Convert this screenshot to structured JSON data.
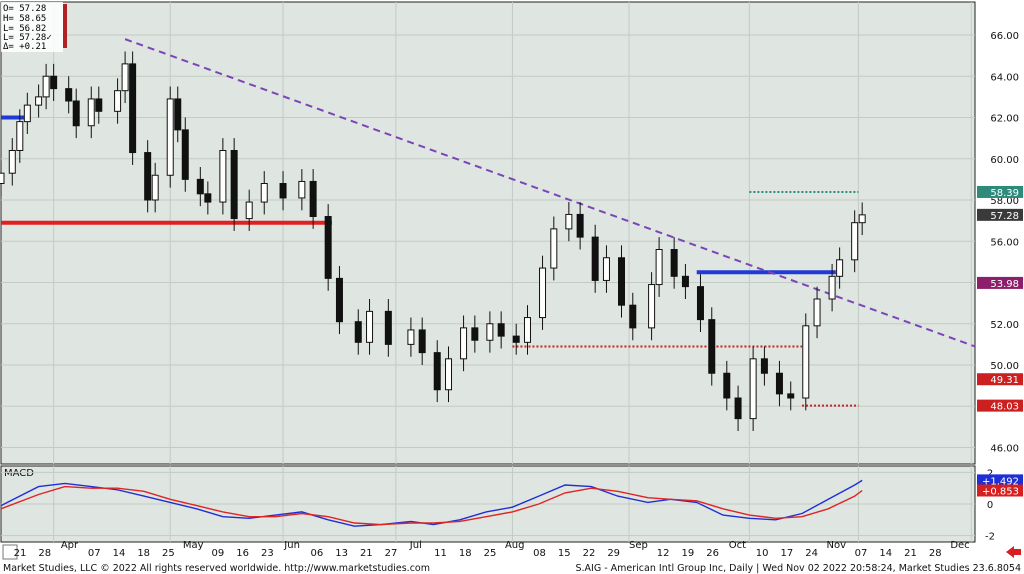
{
  "ohlc_box": {
    "lines": [
      "O=   57.28",
      "H=   58.65",
      "L=   56.82",
      "L=   57.28✓",
      "Δ=  +0.21"
    ]
  },
  "main_axis": {
    "ticks": [
      {
        "value": 46,
        "label": "46.00"
      },
      {
        "value": 48,
        "label": "48.00"
      },
      {
        "value": 50,
        "label": "50.00"
      },
      {
        "value": 52,
        "label": "52.00"
      },
      {
        "value": 54,
        "label": "54.00"
      },
      {
        "value": 56,
        "label": "56.00"
      },
      {
        "value": 58,
        "label": "58.00"
      },
      {
        "value": 60,
        "label": "60.00"
      },
      {
        "value": 62,
        "label": "62.00"
      },
      {
        "value": 64,
        "label": "64.00"
      },
      {
        "value": 66,
        "label": "66.00"
      }
    ],
    "badges": [
      {
        "value": 58.39,
        "label": "58.39",
        "color": "#2e8b7a"
      },
      {
        "value": 57.28,
        "label": "57.28",
        "color": "#3a3a3a"
      },
      {
        "value": 53.98,
        "label": "53.98",
        "color": "#8b1f6b"
      },
      {
        "value": 49.31,
        "label": "49.31",
        "color": "#cc1f1f"
      },
      {
        "value": 48.03,
        "label": "48.03",
        "color": "#cc1f1f"
      }
    ]
  },
  "macd_panel": {
    "title": "MACD",
    "ticks": [
      {
        "value": 2,
        "label": "2"
      },
      {
        "value": 0,
        "label": "0"
      },
      {
        "value": -2,
        "label": "-2"
      }
    ],
    "badges": [
      {
        "value": 1.492,
        "label": "+1.492",
        "color": "#1f2fd6"
      },
      {
        "value": 0.853,
        "label": "+0.853",
        "color": "#d61f1f"
      }
    ]
  },
  "date_axis": {
    "labels": [
      "21",
      "28",
      "Apr",
      "07",
      "14",
      "18",
      "25",
      "May",
      "09",
      "16",
      "23",
      "Jun",
      "06",
      "13",
      "21",
      "27",
      "Jul",
      "11",
      "18",
      "25",
      "Aug",
      "08",
      "15",
      "22",
      "29",
      "Sep",
      "12",
      "19",
      "26",
      "Oct",
      "10",
      "17",
      "24",
      "Nov",
      "07",
      "14",
      "21",
      "28",
      "Dec"
    ],
    "month_labels": [
      "Apr",
      "May",
      "Jun",
      "Jul",
      "Aug",
      "Sep",
      "Oct",
      "Nov",
      "Dec"
    ]
  },
  "footer": {
    "left": "Market Studies, LLC © 2022 All rights reserved worldwide. http://www.marketstudies.com",
    "right": "S.AIG - American Intl Group Inc, Daily | Wed Nov 02 2022 20:58:24, Market Studies 23.6.8054"
  },
  "colors": {
    "plot_bg": "#dfe5e0",
    "up_candle": "#ffffff",
    "down_candle": "#111111",
    "trendline": "#7b45b8",
    "support_red": "#e02020",
    "support_blue": "#1f3ad6",
    "macd_line": "#1f2fd6",
    "signal_line": "#e02424"
  },
  "chart_data": {
    "type": "candlestick",
    "title": "",
    "symbol_text": "S.AIG - American Intl Group Inc, Daily",
    "ylim": [
      45.2,
      67.6
    ],
    "x_range_dates": [
      "2022-03-18",
      "2022-12-02"
    ],
    "last_bar": {
      "open": 57.28,
      "high": 58.65,
      "low": 56.82,
      "close": 57.28,
      "change": 0.21
    },
    "trendline": {
      "start": [
        "2022-04-20",
        65.8
      ],
      "end": [
        "2022-12-02",
        50.9
      ],
      "style": "dashed"
    },
    "horizontal_levels": [
      {
        "value": 56.9,
        "color": "#e02020",
        "from": "2022-03-18",
        "to": "2022-06-14",
        "style": "solid"
      },
      {
        "value": 62.0,
        "color": "#1f3ad6",
        "from": "2022-03-18",
        "to": "2022-03-25",
        "style": "solid"
      },
      {
        "value": 54.5,
        "color": "#1f3ad6",
        "from": "2022-09-19",
        "to": "2022-10-26",
        "style": "solid"
      },
      {
        "value": 58.39,
        "color": "#2e8b7a",
        "from": "2022-10-03",
        "to": "2022-11-01",
        "style": "dotted"
      },
      {
        "value": 48.03,
        "color": "#cc1f1f",
        "from": "2022-10-17",
        "to": "2022-11-01",
        "style": "dotted"
      },
      {
        "value": 50.9,
        "color": "#cc1f1f",
        "from": "2022-08-01",
        "to": "2022-10-17",
        "style": "dotted"
      }
    ],
    "series_close": [
      {
        "date": "2022-03-18",
        "close": 59.3
      },
      {
        "date": "2022-03-21",
        "close": 60.4
      },
      {
        "date": "2022-03-23",
        "close": 61.8
      },
      {
        "date": "2022-03-25",
        "close": 62.6
      },
      {
        "date": "2022-03-28",
        "close": 63.0
      },
      {
        "date": "2022-03-30",
        "close": 64.0
      },
      {
        "date": "2022-04-01",
        "close": 63.4
      },
      {
        "date": "2022-04-05",
        "close": 62.8
      },
      {
        "date": "2022-04-07",
        "close": 61.6
      },
      {
        "date": "2022-04-11",
        "close": 62.9
      },
      {
        "date": "2022-04-13",
        "close": 62.3
      },
      {
        "date": "2022-04-18",
        "close": 63.3
      },
      {
        "date": "2022-04-20",
        "close": 64.6
      },
      {
        "date": "2022-04-22",
        "close": 60.3
      },
      {
        "date": "2022-04-26",
        "close": 58.0
      },
      {
        "date": "2022-04-28",
        "close": 59.2
      },
      {
        "date": "2022-05-02",
        "close": 62.9
      },
      {
        "date": "2022-05-04",
        "close": 61.4
      },
      {
        "date": "2022-05-06",
        "close": 59.0
      },
      {
        "date": "2022-05-10",
        "close": 58.3
      },
      {
        "date": "2022-05-12",
        "close": 57.9
      },
      {
        "date": "2022-05-16",
        "close": 60.4
      },
      {
        "date": "2022-05-19",
        "close": 57.1
      },
      {
        "date": "2022-05-23",
        "close": 57.9
      },
      {
        "date": "2022-05-27",
        "close": 58.8
      },
      {
        "date": "2022-06-01",
        "close": 58.1
      },
      {
        "date": "2022-06-06",
        "close": 58.9
      },
      {
        "date": "2022-06-09",
        "close": 57.2
      },
      {
        "date": "2022-06-13",
        "close": 54.2
      },
      {
        "date": "2022-06-16",
        "close": 52.1
      },
      {
        "date": "2022-06-21",
        "close": 51.1
      },
      {
        "date": "2022-06-24",
        "close": 52.6
      },
      {
        "date": "2022-06-29",
        "close": 51.0
      },
      {
        "date": "2022-07-05",
        "close": 51.7
      },
      {
        "date": "2022-07-08",
        "close": 50.6
      },
      {
        "date": "2022-07-12",
        "close": 48.8
      },
      {
        "date": "2022-07-15",
        "close": 50.3
      },
      {
        "date": "2022-07-19",
        "close": 51.8
      },
      {
        "date": "2022-07-22",
        "close": 51.2
      },
      {
        "date": "2022-07-26",
        "close": 52.0
      },
      {
        "date": "2022-07-29",
        "close": 51.4
      },
      {
        "date": "2022-08-02",
        "close": 51.1
      },
      {
        "date": "2022-08-05",
        "close": 52.3
      },
      {
        "date": "2022-08-09",
        "close": 54.7
      },
      {
        "date": "2022-08-12",
        "close": 56.6
      },
      {
        "date": "2022-08-16",
        "close": 57.3
      },
      {
        "date": "2022-08-19",
        "close": 56.2
      },
      {
        "date": "2022-08-23",
        "close": 54.1
      },
      {
        "date": "2022-08-26",
        "close": 55.2
      },
      {
        "date": "2022-08-30",
        "close": 52.9
      },
      {
        "date": "2022-09-02",
        "close": 51.8
      },
      {
        "date": "2022-09-07",
        "close": 53.9
      },
      {
        "date": "2022-09-09",
        "close": 55.6
      },
      {
        "date": "2022-09-13",
        "close": 54.3
      },
      {
        "date": "2022-09-16",
        "close": 53.8
      },
      {
        "date": "2022-09-20",
        "close": 52.2
      },
      {
        "date": "2022-09-23",
        "close": 49.6
      },
      {
        "date": "2022-09-27",
        "close": 48.4
      },
      {
        "date": "2022-09-30",
        "close": 47.4
      },
      {
        "date": "2022-10-04",
        "close": 50.3
      },
      {
        "date": "2022-10-07",
        "close": 49.6
      },
      {
        "date": "2022-10-11",
        "close": 48.6
      },
      {
        "date": "2022-10-14",
        "close": 48.4
      },
      {
        "date": "2022-10-18",
        "close": 51.9
      },
      {
        "date": "2022-10-21",
        "close": 53.2
      },
      {
        "date": "2022-10-25",
        "close": 54.3
      },
      {
        "date": "2022-10-27",
        "close": 55.1
      },
      {
        "date": "2022-10-31",
        "close": 56.9
      },
      {
        "date": "2022-11-02",
        "close": 57.28
      }
    ],
    "macd": {
      "ylim": [
        -2.4,
        2.4
      ],
      "series": [
        {
          "name": "MACD",
          "values": [
            {
              "date": "2022-03-18",
              "v": -0.1
            },
            {
              "date": "2022-03-28",
              "v": 1.1
            },
            {
              "date": "2022-04-04",
              "v": 1.3
            },
            {
              "date": "2022-04-11",
              "v": 1.1
            },
            {
              "date": "2022-04-18",
              "v": 0.9
            },
            {
              "date": "2022-04-25",
              "v": 0.5
            },
            {
              "date": "2022-05-02",
              "v": 0.1
            },
            {
              "date": "2022-05-09",
              "v": -0.3
            },
            {
              "date": "2022-05-16",
              "v": -0.8
            },
            {
              "date": "2022-05-23",
              "v": -0.9
            },
            {
              "date": "2022-05-30",
              "v": -0.7
            },
            {
              "date": "2022-06-06",
              "v": -0.5
            },
            {
              "date": "2022-06-13",
              "v": -1.0
            },
            {
              "date": "2022-06-20",
              "v": -1.4
            },
            {
              "date": "2022-06-27",
              "v": -1.3
            },
            {
              "date": "2022-07-05",
              "v": -1.1
            },
            {
              "date": "2022-07-11",
              "v": -1.3
            },
            {
              "date": "2022-07-18",
              "v": -1.0
            },
            {
              "date": "2022-07-25",
              "v": -0.5
            },
            {
              "date": "2022-08-01",
              "v": -0.2
            },
            {
              "date": "2022-08-08",
              "v": 0.5
            },
            {
              "date": "2022-08-15",
              "v": 1.2
            },
            {
              "date": "2022-08-22",
              "v": 1.1
            },
            {
              "date": "2022-08-29",
              "v": 0.5
            },
            {
              "date": "2022-09-06",
              "v": 0.1
            },
            {
              "date": "2022-09-12",
              "v": 0.3
            },
            {
              "date": "2022-09-19",
              "v": 0.1
            },
            {
              "date": "2022-09-26",
              "v": -0.7
            },
            {
              "date": "2022-10-03",
              "v": -0.9
            },
            {
              "date": "2022-10-10",
              "v": -1.0
            },
            {
              "date": "2022-10-17",
              "v": -0.6
            },
            {
              "date": "2022-10-24",
              "v": 0.3
            },
            {
              "date": "2022-10-31",
              "v": 1.2
            },
            {
              "date": "2022-11-02",
              "v": 1.492
            }
          ]
        },
        {
          "name": "Signal",
          "values": [
            {
              "date": "2022-03-18",
              "v": -0.3
            },
            {
              "date": "2022-03-28",
              "v": 0.6
            },
            {
              "date": "2022-04-04",
              "v": 1.1
            },
            {
              "date": "2022-04-11",
              "v": 1.0
            },
            {
              "date": "2022-04-18",
              "v": 1.0
            },
            {
              "date": "2022-04-25",
              "v": 0.8
            },
            {
              "date": "2022-05-02",
              "v": 0.3
            },
            {
              "date": "2022-05-09",
              "v": -0.1
            },
            {
              "date": "2022-05-16",
              "v": -0.5
            },
            {
              "date": "2022-05-23",
              "v": -0.8
            },
            {
              "date": "2022-05-30",
              "v": -0.8
            },
            {
              "date": "2022-06-06",
              "v": -0.6
            },
            {
              "date": "2022-06-13",
              "v": -0.8
            },
            {
              "date": "2022-06-20",
              "v": -1.2
            },
            {
              "date": "2022-06-27",
              "v": -1.3
            },
            {
              "date": "2022-07-05",
              "v": -1.2
            },
            {
              "date": "2022-07-11",
              "v": -1.2
            },
            {
              "date": "2022-07-18",
              "v": -1.1
            },
            {
              "date": "2022-07-25",
              "v": -0.8
            },
            {
              "date": "2022-08-01",
              "v": -0.5
            },
            {
              "date": "2022-08-08",
              "v": 0.0
            },
            {
              "date": "2022-08-15",
              "v": 0.7
            },
            {
              "date": "2022-08-22",
              "v": 1.0
            },
            {
              "date": "2022-08-29",
              "v": 0.8
            },
            {
              "date": "2022-09-06",
              "v": 0.4
            },
            {
              "date": "2022-09-12",
              "v": 0.3
            },
            {
              "date": "2022-09-19",
              "v": 0.2
            },
            {
              "date": "2022-09-26",
              "v": -0.3
            },
            {
              "date": "2022-10-03",
              "v": -0.7
            },
            {
              "date": "2022-10-10",
              "v": -0.9
            },
            {
              "date": "2022-10-17",
              "v": -0.8
            },
            {
              "date": "2022-10-24",
              "v": -0.3
            },
            {
              "date": "2022-10-31",
              "v": 0.5
            },
            {
              "date": "2022-11-02",
              "v": 0.853
            }
          ]
        }
      ]
    }
  }
}
